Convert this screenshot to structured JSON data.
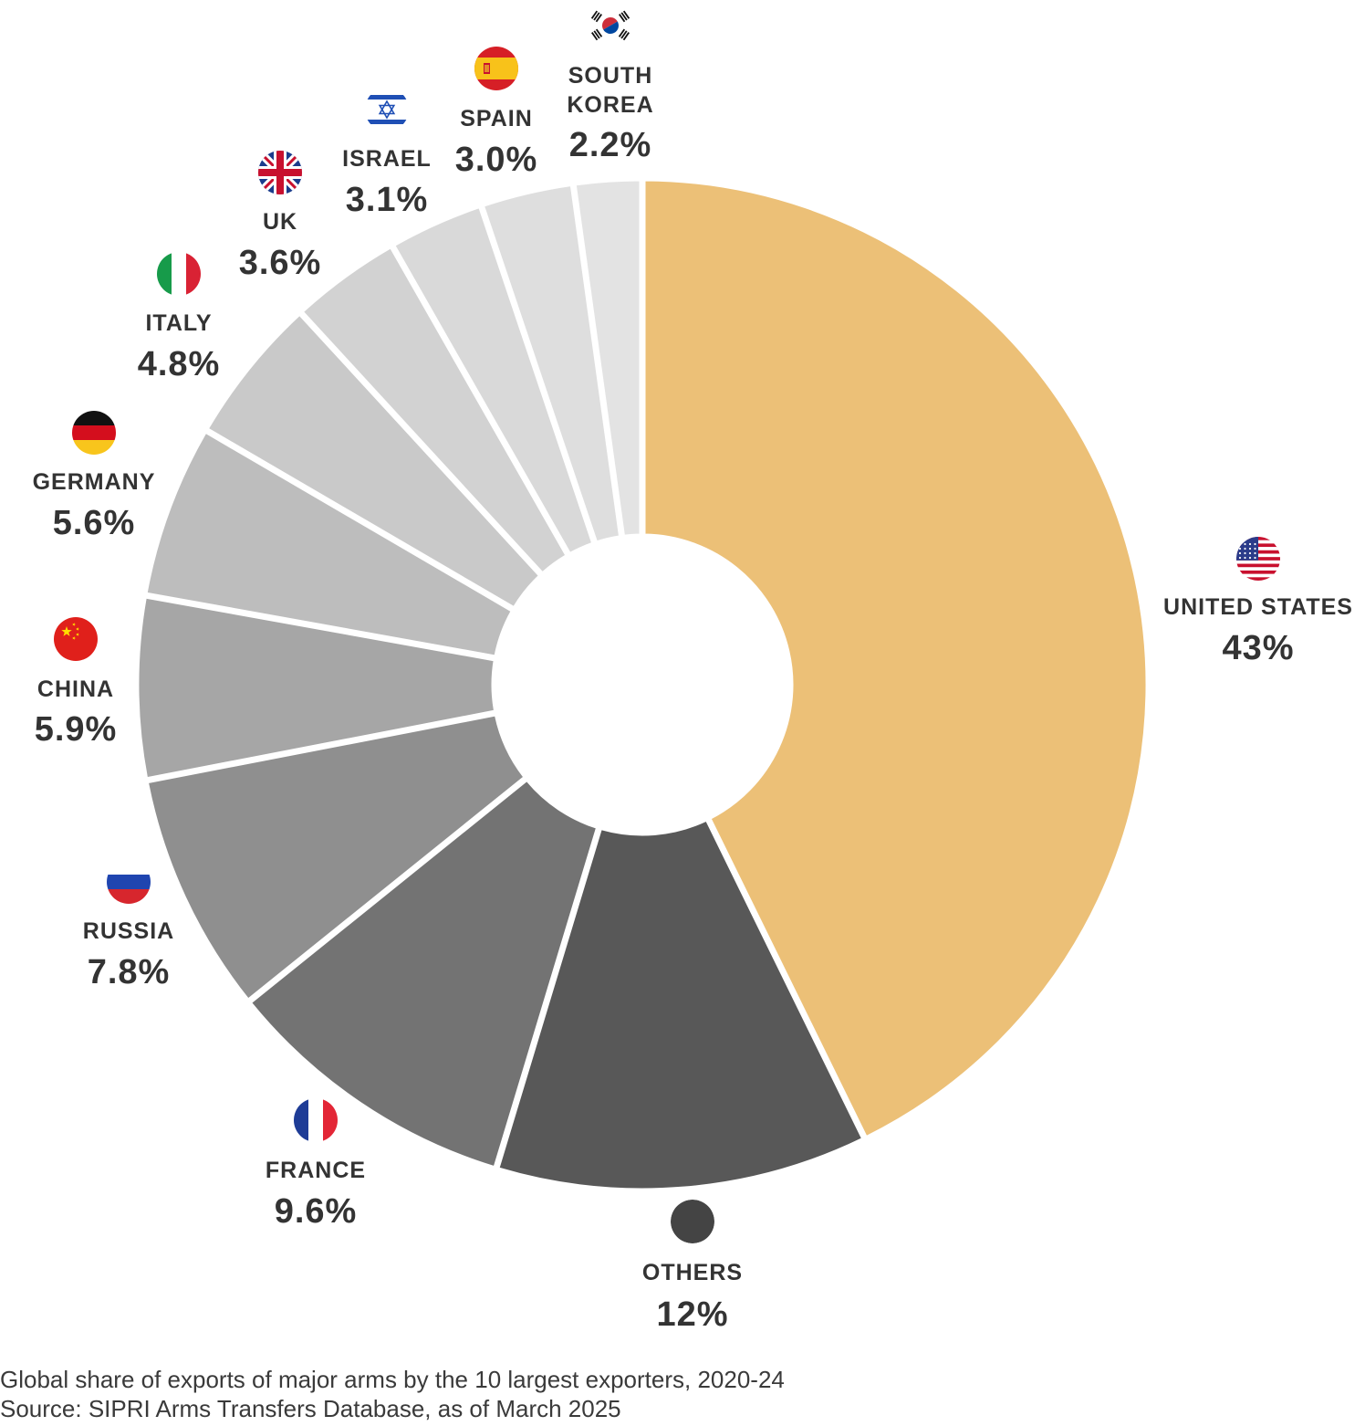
{
  "chart_data": {
    "type": "pie",
    "style": "donut",
    "unit": "%",
    "slices": [
      {
        "name": "UNITED STATES",
        "label_lines": [
          "UNITED STATES"
        ],
        "value": 43,
        "display": "43%",
        "color": "#ECC077",
        "icon": "us-flag-icon"
      },
      {
        "name": "OTHERS",
        "label_lines": [
          "OTHERS"
        ],
        "value": 12,
        "display": "12%",
        "color": "#585858",
        "icon": "others-dot-icon"
      },
      {
        "name": "FRANCE",
        "label_lines": [
          "FRANCE"
        ],
        "value": 9.6,
        "display": "9.6%",
        "color": "#737373",
        "icon": "france-flag-icon"
      },
      {
        "name": "RUSSIA",
        "label_lines": [
          "RUSSIA"
        ],
        "value": 7.8,
        "display": "7.8%",
        "color": "#8F8F8F",
        "icon": "russia-flag-icon"
      },
      {
        "name": "CHINA",
        "label_lines": [
          "CHINA"
        ],
        "value": 5.9,
        "display": "5.9%",
        "color": "#A6A6A6",
        "icon": "china-flag-icon"
      },
      {
        "name": "GERMANY",
        "label_lines": [
          "GERMANY"
        ],
        "value": 5.6,
        "display": "5.6%",
        "color": "#BDBDBD",
        "icon": "germany-flag-icon"
      },
      {
        "name": "ITALY",
        "label_lines": [
          "ITALY"
        ],
        "value": 4.8,
        "display": "4.8%",
        "color": "#C9C9C9",
        "icon": "italy-flag-icon"
      },
      {
        "name": "UK",
        "label_lines": [
          "UK"
        ],
        "value": 3.6,
        "display": "3.6%",
        "color": "#D2D2D2",
        "icon": "uk-flag-icon"
      },
      {
        "name": "ISRAEL",
        "label_lines": [
          "ISRAEL"
        ],
        "value": 3.1,
        "display": "3.1%",
        "color": "#D9D9D9",
        "icon": "israel-flag-icon"
      },
      {
        "name": "SPAIN",
        "label_lines": [
          "SPAIN"
        ],
        "value": 3.0,
        "display": "3.0%",
        "color": "#DEDEDE",
        "icon": "spain-flag-icon"
      },
      {
        "name": "SOUTH KOREA",
        "label_lines": [
          "SOUTH",
          "KOREA"
        ],
        "value": 2.2,
        "display": "2.2%",
        "color": "#E3E3E3",
        "icon": "south-korea-flag-icon"
      }
    ]
  },
  "caption": {
    "line1": "Global share of exports of major arms by the 10 largest exporters, 2020-24",
    "line2": "Source: SIPRI Arms Transfers Database, as of March 2025"
  }
}
